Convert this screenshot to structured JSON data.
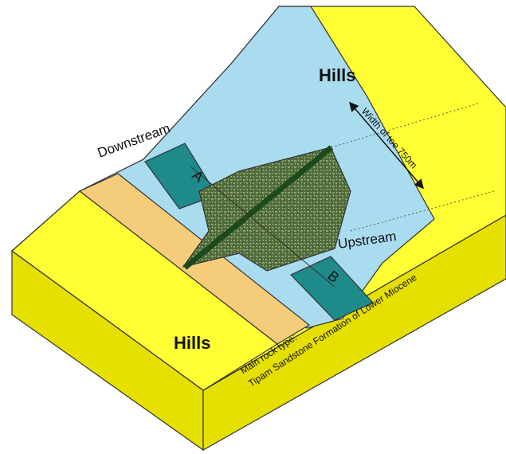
{
  "labels": {
    "hills_top": "Hills",
    "hills_bottom": "Hills",
    "downstream": "Downstream",
    "upstream": "Upstream",
    "width": "Width of toe 750m",
    "section_a": "A",
    "section_b": "B",
    "rock_type": "Main rock type:",
    "formation": "Tipam Sandstone Formation of Lower Miocene"
  }
}
